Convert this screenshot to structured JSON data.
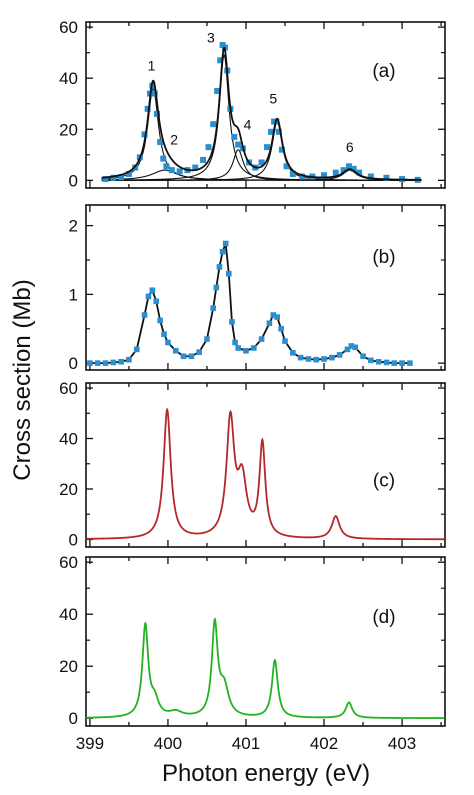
{
  "x_axis": {
    "label": "Photon energy (eV)",
    "range": [
      398.95,
      403.55
    ],
    "ticks": [
      399,
      400,
      401,
      402,
      403
    ]
  },
  "y_axis_label": "Cross section (Mb)",
  "colors": {
    "fit_total": "#111111",
    "components": "#111111",
    "experiment_points": "#2a8fcf",
    "panel_c_line": "#b5282a",
    "panel_d_line": "#22b322"
  },
  "chart_data": [
    {
      "panel": "(a)",
      "type": "line",
      "ylim": [
        -3,
        62
      ],
      "yticks": [
        0,
        20,
        40,
        60
      ],
      "peak_labels": [
        {
          "text": "1",
          "x": 399.79,
          "y": 43
        },
        {
          "text": "2",
          "x": 400.08,
          "y": 14
        },
        {
          "text": "3",
          "x": 400.55,
          "y": 54
        },
        {
          "text": "4",
          "x": 401.02,
          "y": 20
        },
        {
          "text": "5",
          "x": 401.35,
          "y": 30
        },
        {
          "text": "6",
          "x": 402.33,
          "y": 11
        }
      ],
      "components": [
        {
          "label": "1",
          "center": 399.81,
          "height": 36,
          "width": 0.085
        },
        {
          "label": "2",
          "center": 399.96,
          "height": 4,
          "width": 0.2
        },
        {
          "label": "3",
          "center": 400.72,
          "height": 49,
          "width": 0.075
        },
        {
          "label": "4",
          "center": 400.9,
          "height": 12,
          "width": 0.08
        },
        {
          "label": "5",
          "center": 401.4,
          "height": 23,
          "width": 0.08
        },
        {
          "label": "6",
          "center": 402.33,
          "height": 4,
          "width": 0.11
        }
      ],
      "points": {
        "x": [
          399.2,
          399.3,
          399.4,
          399.5,
          399.58,
          399.64,
          399.7,
          399.74,
          399.77,
          399.8,
          399.83,
          399.86,
          399.9,
          399.94,
          399.98,
          400.05,
          400.15,
          400.25,
          400.35,
          400.45,
          400.52,
          400.58,
          400.63,
          400.67,
          400.7,
          400.73,
          400.76,
          400.8,
          400.85,
          400.9,
          400.96,
          401.04,
          401.12,
          401.2,
          401.27,
          401.32,
          401.36,
          401.39,
          401.42,
          401.46,
          401.52,
          401.6,
          401.72,
          401.85,
          402.0,
          402.15,
          402.25,
          402.32,
          402.38,
          402.45,
          402.6,
          402.8,
          403.0,
          403.2
        ],
        "y": [
          0.5,
          1.0,
          1.2,
          2.5,
          5.0,
          9.0,
          18.0,
          28.0,
          34.0,
          37.0,
          34.0,
          26.0,
          15.0,
          8.5,
          5.5,
          4.0,
          3.5,
          4.0,
          5.0,
          8.0,
          13.0,
          22.0,
          35.0,
          47.0,
          53.0,
          52.0,
          43.0,
          28.0,
          17.0,
          14.0,
          12.5,
          7.0,
          5.0,
          7.0,
          13.0,
          19.0,
          23.0,
          23.0,
          19.0,
          12.0,
          5.5,
          2.5,
          1.5,
          1.5,
          2.0,
          3.0,
          4.0,
          5.5,
          4.5,
          3.0,
          1.5,
          1.0,
          0.5,
          0.2
        ]
      }
    },
    {
      "panel": "(b)",
      "type": "line",
      "ylim": [
        -0.1,
        2.3
      ],
      "yticks": [
        0,
        1,
        2
      ],
      "points": {
        "x": [
          399.0,
          399.1,
          399.2,
          399.3,
          399.4,
          399.5,
          399.6,
          399.7,
          399.75,
          399.8,
          399.85,
          399.9,
          399.95,
          400.0,
          400.1,
          400.2,
          400.3,
          400.4,
          400.5,
          400.58,
          400.62,
          400.66,
          400.7,
          400.74,
          400.78,
          400.82,
          400.86,
          400.9,
          401.0,
          401.1,
          401.2,
          401.3,
          401.35,
          401.4,
          401.45,
          401.5,
          401.6,
          401.7,
          401.8,
          401.9,
          402.0,
          402.1,
          402.2,
          402.3,
          402.35,
          402.4,
          402.5,
          402.6,
          402.7,
          402.8,
          402.9,
          403.0,
          403.1
        ],
        "y": [
          0.0,
          0.0,
          0.0,
          0.01,
          0.02,
          0.05,
          0.2,
          0.7,
          0.97,
          1.06,
          0.9,
          0.62,
          0.42,
          0.3,
          0.18,
          0.1,
          0.1,
          0.16,
          0.35,
          0.8,
          1.1,
          1.4,
          1.62,
          1.74,
          1.3,
          0.6,
          0.3,
          0.22,
          0.18,
          0.22,
          0.35,
          0.58,
          0.7,
          0.67,
          0.5,
          0.32,
          0.15,
          0.08,
          0.06,
          0.05,
          0.06,
          0.08,
          0.12,
          0.2,
          0.25,
          0.23,
          0.1,
          0.04,
          0.02,
          0.01,
          0.0,
          0.0,
          0.0
        ]
      }
    },
    {
      "panel": "(c)",
      "type": "line",
      "ylim": [
        -3,
        62
      ],
      "yticks": [
        0,
        20,
        40,
        60
      ],
      "components": [
        {
          "center": 399.99,
          "height": 51,
          "width": 0.055
        },
        {
          "center": 400.8,
          "height": 46,
          "width": 0.06
        },
        {
          "center": 400.95,
          "height": 22,
          "width": 0.07
        },
        {
          "center": 401.21,
          "height": 37,
          "width": 0.045
        },
        {
          "center": 402.15,
          "height": 9,
          "width": 0.06
        }
      ]
    },
    {
      "panel": "(d)",
      "type": "line",
      "ylim": [
        -3,
        62
      ],
      "yticks": [
        0,
        20,
        40,
        60
      ],
      "components": [
        {
          "center": 399.71,
          "height": 35,
          "width": 0.045
        },
        {
          "center": 399.83,
          "height": 6,
          "width": 0.06
        },
        {
          "center": 400.1,
          "height": 2,
          "width": 0.1
        },
        {
          "center": 400.6,
          "height": 35,
          "width": 0.045
        },
        {
          "center": 400.72,
          "height": 11,
          "width": 0.07
        },
        {
          "center": 401.37,
          "height": 22,
          "width": 0.045
        },
        {
          "center": 402.32,
          "height": 6,
          "width": 0.05
        }
      ]
    }
  ]
}
